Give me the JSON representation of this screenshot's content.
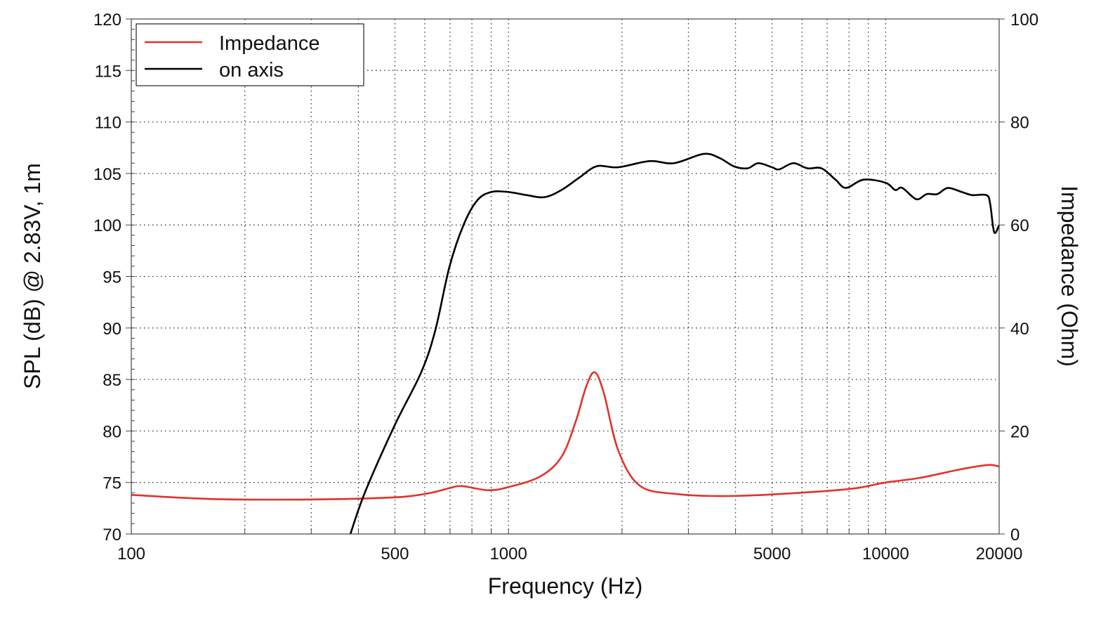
{
  "chart_data": {
    "type": "line",
    "title": "",
    "xlabel": "Frequency (Hz)",
    "ylabel": "SPL (dB) @ 2.83V, 1m",
    "y2label": "Impedance (Ohm)",
    "xscale": "log",
    "xlim": [
      100,
      20000
    ],
    "ylim": [
      70,
      120
    ],
    "y2lim": [
      0,
      100
    ],
    "grid": true,
    "legend_position": "top-left",
    "x_tick_labels": [
      "100",
      "500",
      "1000",
      "5000",
      "10000",
      "20000"
    ],
    "x_ticks": [
      100,
      500,
      1000,
      5000,
      10000,
      20000
    ],
    "y_ticks": [
      70,
      75,
      80,
      85,
      90,
      95,
      100,
      105,
      110,
      115,
      120
    ],
    "y_tick_labels": [
      "70",
      "75",
      "80",
      "85",
      "90",
      "95",
      "100",
      "105",
      "110",
      "115",
      "120"
    ],
    "y2_ticks": [
      0,
      20,
      40,
      60,
      80,
      100
    ],
    "y2_tick_labels": [
      "0",
      "20",
      "40",
      "60",
      "80",
      "100"
    ],
    "series": [
      {
        "name": "Impedance",
        "axis": "right",
        "color": "#e0332c",
        "x": [
          100,
          162,
          296,
          495,
          613,
          697,
          753,
          883,
          1000,
          1216,
          1383,
          1507,
          1607,
          1694,
          1791,
          1951,
          2218,
          2748,
          4036,
          7690,
          10000,
          12320,
          15920,
          18700,
          20000
        ],
        "y": [
          7.6,
          6.8,
          6.7,
          7.1,
          7.9,
          8.9,
          9.3,
          8.5,
          9.1,
          11.2,
          15.0,
          21.8,
          28.6,
          31.4,
          27.3,
          16.4,
          9.5,
          7.8,
          7.4,
          8.6,
          10.0,
          10.9,
          12.6,
          13.4,
          13.1
        ]
      },
      {
        "name": "on axis",
        "axis": "left",
        "color": "#000000",
        "x": [
          381,
          417,
          500,
          587,
          640,
          697,
          760,
          827,
          901,
          1000,
          1117,
          1245,
          1383,
          1541,
          1714,
          1951,
          2366,
          2748,
          3290,
          3630,
          3955,
          4305,
          4593,
          5000,
          5224,
          5690,
          6205,
          6760,
          7363,
          7850,
          8740,
          10000,
          10600,
          11070,
          12060,
          12850,
          13710,
          14620,
          15920,
          16980,
          18500,
          18920,
          19400,
          20000
        ],
        "y": [
          70.0,
          74.1,
          80.6,
          85.7,
          89.8,
          95.9,
          100.0,
          102.4,
          103.2,
          103.2,
          102.9,
          102.7,
          103.4,
          104.6,
          105.7,
          105.6,
          106.2,
          106.0,
          106.9,
          106.5,
          105.7,
          105.5,
          106.0,
          105.6,
          105.4,
          106.0,
          105.5,
          105.5,
          104.4,
          103.6,
          104.4,
          104.1,
          103.4,
          103.6,
          102.5,
          103.0,
          103.0,
          103.6,
          103.2,
          102.9,
          102.9,
          102.1,
          99.3,
          100.0
        ]
      }
    ]
  }
}
